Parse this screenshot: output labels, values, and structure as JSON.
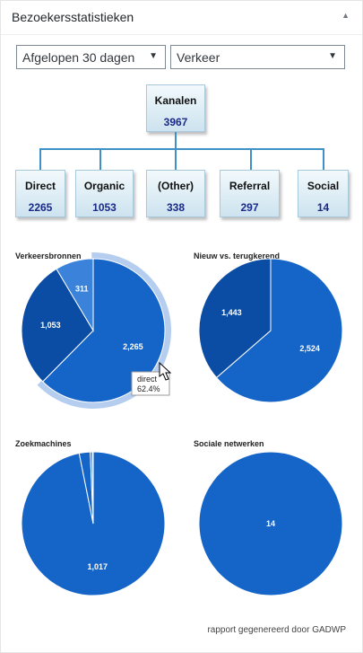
{
  "widget": {
    "title": "Bezoekersstatistieken",
    "collapse_icon": "triangle-up-icon"
  },
  "filters": {
    "period": "Afgelopen 30 dagen",
    "report": "Verkeer"
  },
  "tree": {
    "root": {
      "label": "Kanalen",
      "value": "3967"
    },
    "children": [
      {
        "label": "Direct",
        "value": "2265"
      },
      {
        "label": "Organic",
        "value": "1053"
      },
      {
        "label": "(Other)",
        "value": "338"
      },
      {
        "label": "Referral",
        "value": "297"
      },
      {
        "label": "Social",
        "value": "14"
      }
    ]
  },
  "colors": {
    "primary": "#1565c8",
    "dark": "#0b4da5",
    "light": "#3b83da",
    "connector": "#3e90c6"
  },
  "chart_data": [
    {
      "type": "pie",
      "title": "Verkeersbronnen",
      "slices": [
        {
          "label": "direct",
          "value": 2265,
          "data_label": "2,265"
        },
        {
          "label": "",
          "value": 1053,
          "data_label": "1,053"
        },
        {
          "label": "",
          "value": 311,
          "data_label": "311"
        }
      ],
      "highlighted": "direct",
      "tooltip": {
        "line1": "direct",
        "line2": "62.4%"
      }
    },
    {
      "type": "pie",
      "title": "Nieuw vs. terugkerend",
      "slices": [
        {
          "value": 2524,
          "data_label": "2,524"
        },
        {
          "value": 1443,
          "data_label": "1,443"
        }
      ]
    },
    {
      "type": "pie",
      "title": "Zoekmachines",
      "slices": [
        {
          "value": 1017,
          "data_label": "1,017"
        },
        {
          "value": 26,
          "data_label": ""
        },
        {
          "value": 5,
          "data_label": ""
        },
        {
          "value": 2,
          "data_label": ""
        }
      ]
    },
    {
      "type": "pie",
      "title": "Sociale netwerken",
      "slices": [
        {
          "value": 14,
          "data_label": "14"
        }
      ]
    }
  ],
  "footer": "rapport gegenereerd door GADWP"
}
